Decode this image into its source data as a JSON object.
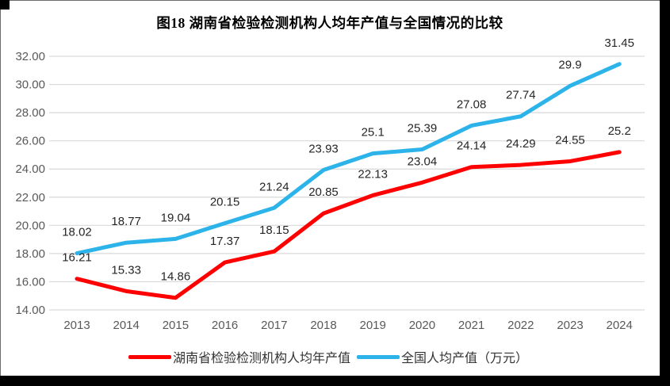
{
  "frame": {
    "border_color": "#000000"
  },
  "chart_data": {
    "type": "line",
    "title": "图18 湖南省检验检测机构人均年产值与全国情况的比较",
    "categories": [
      "2013",
      "2014",
      "2015",
      "2016",
      "2017",
      "2018",
      "2019",
      "2020",
      "2021",
      "2022",
      "2023",
      "2024"
    ],
    "series": [
      {
        "name": "湖南省检验检测机构人均年产值",
        "color": "#FF0000",
        "values": [
          16.21,
          15.33,
          14.86,
          17.37,
          18.15,
          20.85,
          22.13,
          23.04,
          24.14,
          24.29,
          24.55,
          25.2
        ]
      },
      {
        "name": "全国人均产值（万元）",
        "color": "#2BB3EA",
        "values": [
          18.02,
          18.77,
          19.04,
          20.15,
          21.24,
          23.93,
          25.1,
          25.39,
          27.08,
          27.74,
          29.9,
          31.45
        ]
      }
    ],
    "xlabel": "",
    "ylabel": "",
    "ylim": [
      14,
      32
    ],
    "ytick_step": 2,
    "ytick_labels": [
      "14.00",
      "16.00",
      "18.00",
      "20.00",
      "22.00",
      "24.00",
      "26.00",
      "28.00",
      "30.00",
      "32.00"
    ],
    "grid": "horizontal",
    "grid_color": "#D9D9D9",
    "tick_color": "#595959",
    "label_color": "#262626",
    "data_labels": true,
    "legend_position": "bottom"
  }
}
